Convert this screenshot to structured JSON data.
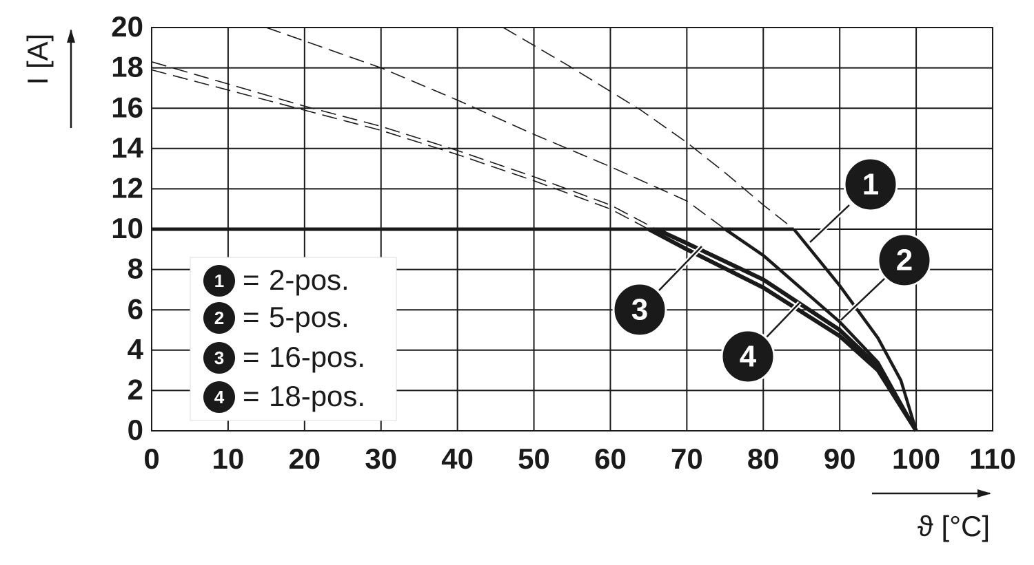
{
  "chart_data": {
    "type": "line",
    "y_label": "I [A]",
    "x_label": "ϑ [°C]",
    "xlim": [
      0,
      110
    ],
    "xticks": [
      0,
      10,
      20,
      30,
      40,
      50,
      60,
      70,
      80,
      90,
      100,
      110
    ],
    "ylim": [
      0,
      20
    ],
    "yticks": [
      0,
      2,
      4,
      6,
      8,
      10,
      12,
      14,
      16,
      18,
      20
    ],
    "grid": true,
    "color": "#1a1a1a",
    "legend_equals": "=",
    "rated_line": {
      "x": [
        0,
        84
      ],
      "values": [
        10,
        10
      ]
    },
    "series": [
      {
        "name": "2-pos.",
        "label": "1",
        "dashed": {
          "x": [
            46,
            55,
            64,
            70,
            75,
            80,
            84
          ],
          "values": [
            20,
            18,
            15.9,
            14.3,
            12.8,
            11.2,
            10
          ]
        },
        "solid": {
          "x": [
            84,
            90,
            95,
            98,
            100
          ],
          "values": [
            10,
            7.2,
            4.6,
            2.5,
            0
          ]
        }
      },
      {
        "name": "5-pos.",
        "label": "2",
        "dashed": {
          "x": [
            15,
            30,
            40,
            50,
            60,
            70,
            75
          ],
          "values": [
            20,
            18,
            16.4,
            14.7,
            13.1,
            11.4,
            10
          ]
        },
        "solid": {
          "x": [
            75,
            80,
            90,
            95,
            100
          ],
          "values": [
            10,
            8.7,
            5.4,
            3.4,
            0
          ]
        }
      },
      {
        "name": "16-pos.",
        "label": "3",
        "dashed": {
          "x": [
            0,
            10,
            20,
            30,
            40,
            50,
            60,
            65
          ],
          "values": [
            17.9,
            16.9,
            15.9,
            14.9,
            13.7,
            12.4,
            11,
            10
          ]
        },
        "solid": {
          "x": [
            65,
            70,
            80,
            90,
            95,
            100
          ],
          "values": [
            10,
            9,
            7.1,
            4.7,
            3,
            0
          ]
        }
      },
      {
        "name": "18-pos.",
        "label": "4",
        "dashed": {
          "x": [
            0,
            10,
            20,
            30,
            40,
            50,
            60,
            66
          ],
          "values": [
            18.3,
            17.2,
            16.1,
            15.1,
            13.9,
            12.6,
            11.2,
            10
          ]
        },
        "solid": {
          "x": [
            66,
            70,
            80,
            90,
            95,
            100
          ],
          "values": [
            10,
            9.3,
            7.5,
            5,
            3.2,
            0
          ]
        }
      }
    ]
  }
}
